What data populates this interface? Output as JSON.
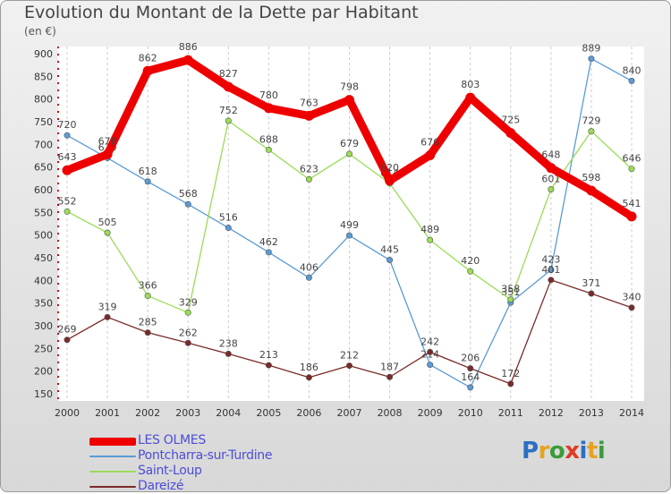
{
  "title": "Evolution du Montant de la Dette par Habitant",
  "subtitle": "(en €)",
  "logo": {
    "text": "Proxiti",
    "letters": [
      "P",
      "r",
      "o",
      "x",
      "i",
      "t",
      "i"
    ],
    "colors": [
      "#2b6fc4",
      "#e6a321",
      "#3a9b3a",
      "#e03a22",
      "#2b6fc4",
      "#e6a321",
      "#3a9b3a"
    ]
  },
  "chart_data": {
    "type": "line",
    "title": "Evolution du Montant de la Dette par Habitant",
    "ylabel": "(en €)",
    "xlabel": "",
    "ylim": [
      150,
      900
    ],
    "yticks": [
      150,
      200,
      250,
      300,
      350,
      400,
      450,
      500,
      550,
      600,
      650,
      700,
      750,
      800,
      850,
      900
    ],
    "grid": "vertical dashed",
    "legend_position": "bottom-left",
    "x": [
      "2000",
      "2001",
      "2002",
      "2003",
      "2004",
      "2005",
      "2006",
      "2007",
      "2008",
      "2009",
      "2010",
      "2011",
      "2012",
      "2013",
      "2014"
    ],
    "series": [
      {
        "name": "LES OLMES",
        "color": "#ee0000",
        "values": [
          643,
          678,
          862,
          886,
          827,
          780,
          763,
          798,
          620,
          676,
          803,
          725,
          648,
          598,
          541
        ]
      },
      {
        "name": "Pontcharra-sur-Turdine",
        "color": "#5b9bd5",
        "values": [
          720,
          670,
          618,
          568,
          516,
          462,
          406,
          499,
          445,
          214,
          164,
          351,
          423,
          889,
          840
        ]
      },
      {
        "name": "Saint-Loup",
        "color": "#99dd55",
        "values": [
          552,
          505,
          366,
          329,
          752,
          688,
          623,
          679,
          614,
          489,
          420,
          358,
          601,
          729,
          646
        ]
      },
      {
        "name": "Dareizé",
        "color": "#7a2a2a",
        "values": [
          269,
          319,
          285,
          262,
          238,
          213,
          186,
          212,
          187,
          242,
          206,
          172,
          401,
          371,
          340
        ]
      }
    ]
  }
}
